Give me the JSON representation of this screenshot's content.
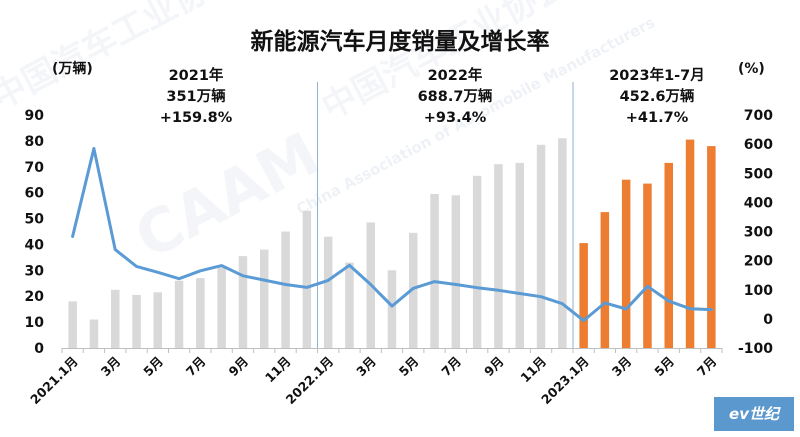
{
  "chart_data": {
    "type": "bar+line",
    "title": "新能源汽车月度销量及增长率",
    "ylabel_left": "(万辆)",
    "ylabel_right": "(%)",
    "ylim_left": [
      0,
      90
    ],
    "yticks_left": [
      "0",
      "10",
      "20",
      "30",
      "40",
      "50",
      "60",
      "70",
      "80",
      "90"
    ],
    "ylim_right": [
      -100,
      700
    ],
    "yticks_right": [
      "-100",
      "0",
      "100",
      "200",
      "300",
      "400",
      "500",
      "600",
      "700"
    ],
    "x": [
      "2021.1月",
      "2021.2月",
      "2021.3月",
      "2021.4月",
      "2021.5月",
      "2021.6月",
      "2021.7月",
      "2021.8月",
      "2021.9月",
      "2021.10月",
      "2021.11月",
      "2021.12月",
      "2022.1月",
      "2022.2月",
      "2022.3月",
      "2022.4月",
      "2022.5月",
      "2022.6月",
      "2022.7月",
      "2022.8月",
      "2022.9月",
      "2022.10月",
      "2022.11月",
      "2022.12月",
      "2023.1月",
      "2023.2月",
      "2023.3月",
      "2023.4月",
      "2023.5月",
      "2023.6月",
      "2023.7月"
    ],
    "xtick_labels": [
      {
        "i": 0,
        "text": "2021.1月"
      },
      {
        "i": 2,
        "text": "3月"
      },
      {
        "i": 4,
        "text": "5月"
      },
      {
        "i": 6,
        "text": "7月"
      },
      {
        "i": 8,
        "text": "9月"
      },
      {
        "i": 10,
        "text": "11月"
      },
      {
        "i": 12,
        "text": "2022.1月"
      },
      {
        "i": 14,
        "text": "3月"
      },
      {
        "i": 16,
        "text": "5月"
      },
      {
        "i": 18,
        "text": "7月"
      },
      {
        "i": 20,
        "text": "9月"
      },
      {
        "i": 22,
        "text": "11月"
      },
      {
        "i": 24,
        "text": "2023.1月"
      },
      {
        "i": 26,
        "text": "3月"
      },
      {
        "i": 28,
        "text": "5月"
      },
      {
        "i": 30,
        "text": "7月"
      }
    ],
    "series": [
      {
        "type": "bar",
        "axis": "left",
        "color_2021_2022": "#d9d9d9",
        "color_2023": "#ed7d31",
        "values": [
          18,
          11,
          22.5,
          20.5,
          21.5,
          26,
          27,
          31,
          35.5,
          38,
          45,
          53,
          43,
          33,
          48.5,
          30,
          44.5,
          59.5,
          59,
          66.5,
          71,
          71.5,
          78.5,
          81,
          40.5,
          52.5,
          65,
          63.5,
          71.5,
          80.5,
          78
        ]
      },
      {
        "type": "line",
        "axis": "right",
        "color": "#5b9bd5",
        "values": [
          283,
          585,
          238,
          180,
          160,
          138,
          165,
          183,
          148,
          133,
          118,
          108,
          132,
          184,
          118,
          44,
          105,
          128,
          118,
          107,
          98,
          87,
          76,
          52,
          -6,
          55,
          34,
          112,
          61,
          35,
          32
        ]
      }
    ],
    "annotations": [
      {
        "id": "y2021",
        "lines": [
          "2021年",
          "351万辆",
          "+159.8%"
        ]
      },
      {
        "id": "y2022",
        "lines": [
          "2022年",
          "688.7万辆",
          "+93.4%"
        ]
      },
      {
        "id": "y2023",
        "lines": [
          "2023年1-7月",
          "452.6万辆",
          "+41.7%"
        ]
      }
    ],
    "dividers_after_index": [
      11,
      23
    ],
    "grid": false,
    "legend": "none"
  },
  "watermark": {
    "org_cn": "中国汽车工业协会",
    "org_en": "China Association of Automobile Manufacturers",
    "logo_text": "CAAM"
  },
  "brand": {
    "text": "ev世纪"
  }
}
